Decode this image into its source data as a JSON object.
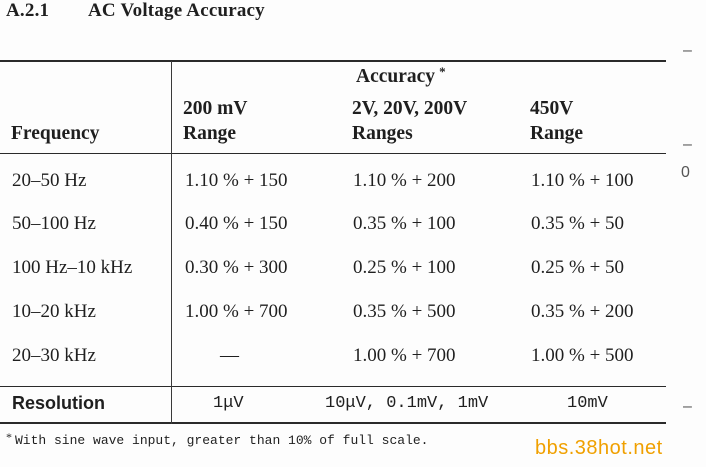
{
  "section": {
    "number": "A.2.1",
    "title": "AC Voltage Accuracy"
  },
  "table": {
    "group_header": "Accuracy",
    "group_header_mark": "*",
    "columns": {
      "frequency": "Frequency",
      "range200mv": [
        "200 mV",
        "Range"
      ],
      "range2v": [
        "2V, 20V, 200V",
        "Ranges"
      ],
      "range450v": [
        "450V",
        "Range"
      ]
    },
    "rows": [
      {
        "frequency": "20–50 Hz",
        "r200mv": "1.10 % + 150",
        "r2v": "1.10 % + 200",
        "r450v": "1.10 % + 100"
      },
      {
        "frequency": "50–100 Hz",
        "r200mv": "0.40 % + 150",
        "r2v": "0.35 % + 100",
        "r450v": "0.35 % + 50"
      },
      {
        "frequency": "100 Hz–10 kHz",
        "r200mv": "0.30 % + 300",
        "r2v": "0.25 % + 100",
        "r450v": "0.25 % + 50"
      },
      {
        "frequency": "10–20 kHz",
        "r200mv": "1.00 % + 700",
        "r2v": "0.35 % + 500",
        "r450v": "0.35 % + 200"
      },
      {
        "frequency": "20–30 kHz",
        "r200mv": "—",
        "r2v": "1.00 % + 700",
        "r450v": "1.00 % + 500"
      }
    ],
    "resolution": {
      "label": "Resolution",
      "r200mv": "1μV",
      "r2v": "10μV, 0.1mV, 1mV",
      "r450v": "10mV"
    }
  },
  "footnote": {
    "mark": "*",
    "text": "With sine wave input, greater than 10% of full scale."
  },
  "margin_marks": {
    "dash1": "–",
    "dash2": "–",
    "zero": "0",
    "dash3": "–"
  },
  "watermark": "bbs.38hot.net"
}
